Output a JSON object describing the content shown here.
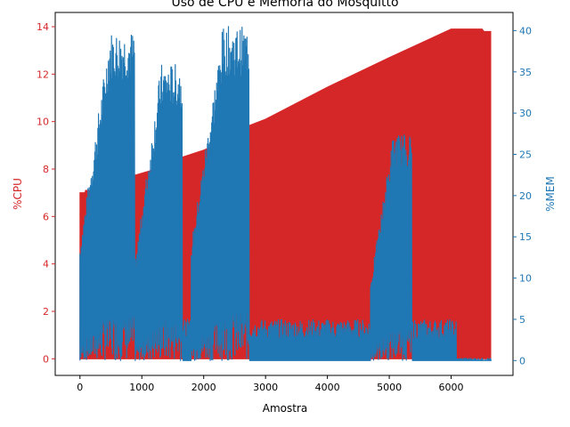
{
  "chart_data": {
    "type": "area",
    "title": "Uso de CPU e Memória do Mosquitto",
    "xlabel": "Amostra",
    "ylabel_left": "%CPU",
    "ylabel_right": "%MEM",
    "xlim": [
      -400,
      7000
    ],
    "ylim_left": [
      -0.7,
      14.6
    ],
    "ylim_right": [
      -1.8,
      42.2
    ],
    "x_ticks": [
      0,
      1000,
      2000,
      3000,
      4000,
      5000,
      6000
    ],
    "y_ticks_left": [
      0,
      2,
      4,
      6,
      8,
      10,
      12,
      14
    ],
    "y_ticks_right": [
      0,
      5,
      10,
      15,
      20,
      25,
      30,
      35,
      40
    ],
    "grid": false,
    "colors": {
      "cpu": "#d62728",
      "mem": "#1f77b4"
    },
    "series": [
      {
        "axis": "left",
        "points": [
          [
            0,
            7.0
          ],
          [
            80,
            7.0
          ],
          [
            90,
            7.1
          ],
          [
            250,
            7.1
          ],
          [
            280,
            7.2
          ],
          [
            900,
            7.75
          ],
          [
            1100,
            7.9
          ],
          [
            1250,
            8.05
          ],
          [
            1650,
            8.5
          ],
          [
            2000,
            8.8
          ],
          [
            2500,
            9.35
          ],
          [
            2700,
            9.8
          ],
          [
            3000,
            10.1
          ],
          [
            4000,
            11.45
          ],
          [
            5000,
            12.7
          ],
          [
            5500,
            13.3
          ],
          [
            6000,
            13.9
          ],
          [
            6500,
            13.9
          ],
          [
            6530,
            13.8
          ],
          [
            6640,
            13.8
          ]
        ]
      },
      {
        "axis": "right",
        "segments": [
          {
            "x_start": 0,
            "x_end": 880,
            "peak": 40
          },
          {
            "x_start": 900,
            "x_end": 1650,
            "peak": 36
          },
          {
            "x_start": 1800,
            "x_end": 2730,
            "peak": 40.5
          },
          {
            "x_start": 4700,
            "x_end": 5360,
            "peak": 27.5
          }
        ],
        "baseline": 2.5,
        "end_x": 6640,
        "end_value": 0
      }
    ]
  }
}
